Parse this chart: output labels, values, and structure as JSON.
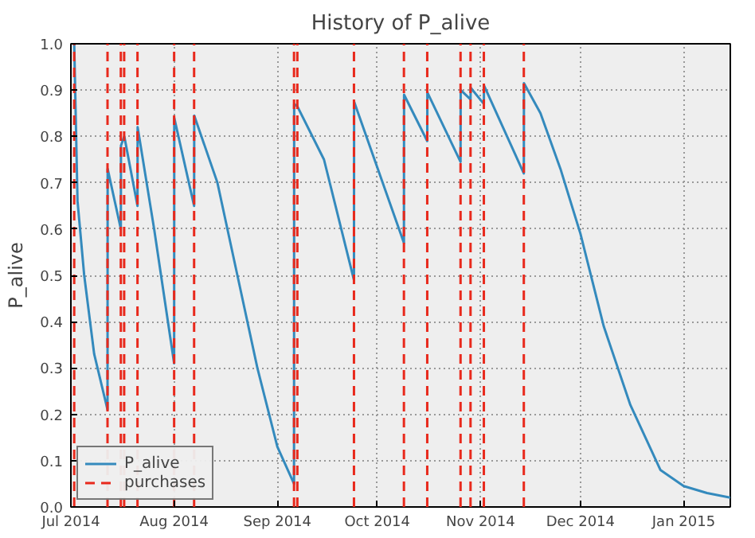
{
  "chart_data": {
    "type": "line",
    "title": "History of P_alive",
    "ylabel": "P_alive",
    "series": [
      {
        "name": "P_alive",
        "color": "#348abd",
        "x": [
          "2014-07-02",
          "2014-07-03",
          "2014-07-05",
          "2014-07-08",
          "2014-07-12",
          "2014-07-12T01:00",
          "2014-07-16",
          "2014-07-16T01:00",
          "2014-07-17",
          "2014-07-17T01:00",
          "2014-07-21",
          "2014-07-21T01:00",
          "2014-07-26",
          "2014-08-01",
          "2014-08-01T01:00",
          "2014-08-07",
          "2014-08-07T01:00",
          "2014-08-14",
          "2014-08-20",
          "2014-08-26",
          "2014-09-01",
          "2014-09-06",
          "2014-09-06T01:00",
          "2014-09-07",
          "2014-09-15",
          "2014-09-24",
          "2014-09-24T01:00",
          "2014-10-09",
          "2014-10-09T01:00",
          "2014-10-16",
          "2014-10-16T01:00",
          "2014-10-26",
          "2014-10-26T01:00",
          "2014-10-29",
          "2014-10-29T01:00",
          "2014-11-02",
          "2014-11-02T01:00",
          "2014-11-14",
          "2014-11-14T01:00",
          "2014-11-19",
          "2014-11-25",
          "2014-12-01",
          "2014-12-08",
          "2014-12-16",
          "2014-12-25",
          "2015-01-01",
          "2015-01-08",
          "2015-01-15"
        ],
        "values": [
          1.0,
          0.66,
          0.5,
          0.33,
          0.21,
          0.73,
          0.6,
          0.78,
          0.8,
          0.8,
          0.65,
          0.82,
          0.6,
          0.31,
          0.84,
          0.65,
          0.845,
          0.7,
          0.5,
          0.3,
          0.13,
          0.05,
          0.87,
          0.865,
          0.75,
          0.49,
          0.875,
          0.57,
          0.89,
          0.79,
          0.895,
          0.745,
          0.9,
          0.88,
          0.905,
          0.87,
          0.91,
          0.72,
          0.915,
          0.85,
          0.73,
          0.59,
          0.39,
          0.22,
          0.08,
          0.045,
          0.03,
          0.02
        ]
      }
    ],
    "ref_lines": [
      {
        "axis": "x",
        "value": "2014-07-02",
        "label": "purchases",
        "color": "#e8291c",
        "line_style": "dashed"
      },
      {
        "axis": "x",
        "value": "2014-07-12",
        "color": "#e8291c",
        "line_style": "dashed"
      },
      {
        "axis": "x",
        "value": "2014-07-16",
        "color": "#e8291c",
        "line_style": "dashed"
      },
      {
        "axis": "x",
        "value": "2014-07-17",
        "color": "#e8291c",
        "line_style": "dashed"
      },
      {
        "axis": "x",
        "value": "2014-07-21",
        "color": "#e8291c",
        "line_style": "dashed"
      },
      {
        "axis": "x",
        "value": "2014-08-01",
        "color": "#e8291c",
        "line_style": "dashed"
      },
      {
        "axis": "x",
        "value": "2014-08-07",
        "color": "#e8291c",
        "line_style": "dashed"
      },
      {
        "axis": "x",
        "value": "2014-09-06",
        "color": "#e8291c",
        "line_style": "dashed"
      },
      {
        "axis": "x",
        "value": "2014-09-07",
        "color": "#e8291c",
        "line_style": "dashed"
      },
      {
        "axis": "x",
        "value": "2014-09-24",
        "color": "#e8291c",
        "line_style": "dashed"
      },
      {
        "axis": "x",
        "value": "2014-10-09",
        "color": "#e8291c",
        "line_style": "dashed"
      },
      {
        "axis": "x",
        "value": "2014-10-16",
        "color": "#e8291c",
        "line_style": "dashed"
      },
      {
        "axis": "x",
        "value": "2014-10-26",
        "color": "#e8291c",
        "line_style": "dashed"
      },
      {
        "axis": "x",
        "value": "2014-10-29",
        "color": "#e8291c",
        "line_style": "dashed"
      },
      {
        "axis": "x",
        "value": "2014-11-02",
        "color": "#e8291c",
        "line_style": "dashed"
      },
      {
        "axis": "x",
        "value": "2014-11-14",
        "color": "#e8291c",
        "line_style": "dashed"
      }
    ],
    "xlim": [
      "2014-07-01",
      "2015-01-15"
    ],
    "xticks": [
      {
        "value": "2014-07-01",
        "label": "Jul 2014"
      },
      {
        "value": "2014-08-01",
        "label": "Aug 2014"
      },
      {
        "value": "2014-09-01",
        "label": "Sep 2014"
      },
      {
        "value": "2014-10-01",
        "label": "Oct 2014"
      },
      {
        "value": "2014-11-01",
        "label": "Nov 2014"
      },
      {
        "value": "2014-12-01",
        "label": "Dec 2014"
      },
      {
        "value": "2015-01-01",
        "label": "Jan 2015"
      }
    ],
    "ylim": [
      0,
      1
    ],
    "yticks": [
      {
        "value": 0,
        "label": "0.0"
      },
      {
        "value": 0.1,
        "label": "0.1"
      },
      {
        "value": 0.2,
        "label": "0.2"
      },
      {
        "value": 0.3,
        "label": "0.3"
      },
      {
        "value": 0.4,
        "label": "0.4"
      },
      {
        "value": 0.5,
        "label": "0.5"
      },
      {
        "value": 0.6,
        "label": "0.6"
      },
      {
        "value": 0.7,
        "label": "0.7"
      },
      {
        "value": 0.8,
        "label": "0.8"
      },
      {
        "value": 0.9,
        "label": "0.9"
      },
      {
        "value": 1,
        "label": "1.0"
      }
    ],
    "grid": true,
    "legend": "bottom left",
    "line_style": "solid"
  }
}
